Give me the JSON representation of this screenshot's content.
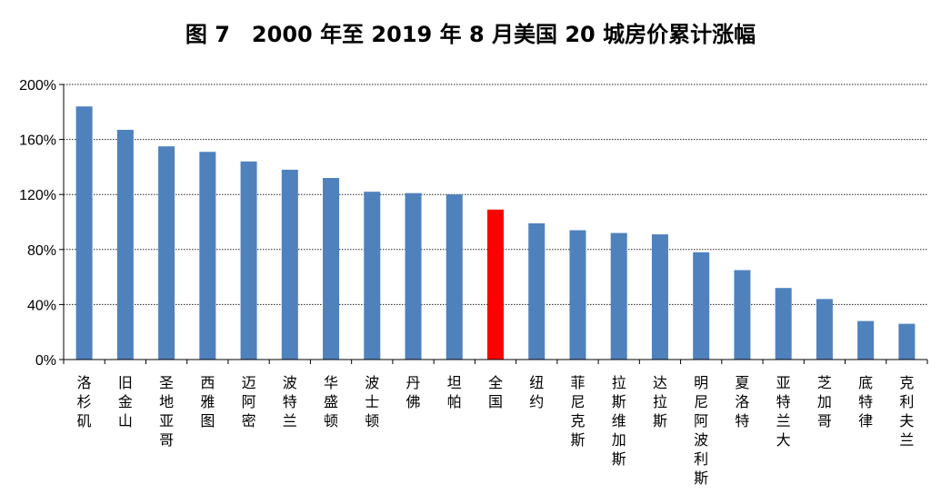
{
  "chart_data": {
    "type": "bar",
    "title": "图 7　2000 年至 2019 年 8 月美国 20 城房价累计涨幅",
    "xlabel": "",
    "ylabel": "",
    "ylim": [
      0,
      2.0
    ],
    "yticks": [
      0,
      0.4,
      0.8,
      1.2,
      1.6,
      2.0
    ],
    "ytick_labels": [
      "0%",
      "40%",
      "80%",
      "120%",
      "160%",
      "200%"
    ],
    "grid": true,
    "legend": "none",
    "colors": {
      "default": "#4f81bd",
      "highlight": "#ff0000"
    },
    "highlight_category": "全国",
    "categories": [
      "洛杉矶",
      "旧金山",
      "圣地亚哥",
      "西雅图",
      "迈阿密",
      "波特兰",
      "华盛顿",
      "波士顿",
      "丹佛",
      "坦帕",
      "全国",
      "纽约",
      "菲尼克斯",
      "拉斯维加斯",
      "达拉斯",
      "明尼阿波利斯",
      "夏洛特",
      "亚特兰大",
      "芝加哥",
      "底特律",
      "克利夫兰"
    ],
    "values": [
      1.84,
      1.67,
      1.55,
      1.51,
      1.44,
      1.38,
      1.32,
      1.22,
      1.21,
      1.2,
      1.09,
      0.99,
      0.94,
      0.92,
      0.91,
      0.78,
      0.65,
      0.52,
      0.44,
      0.28,
      0.26
    ]
  }
}
